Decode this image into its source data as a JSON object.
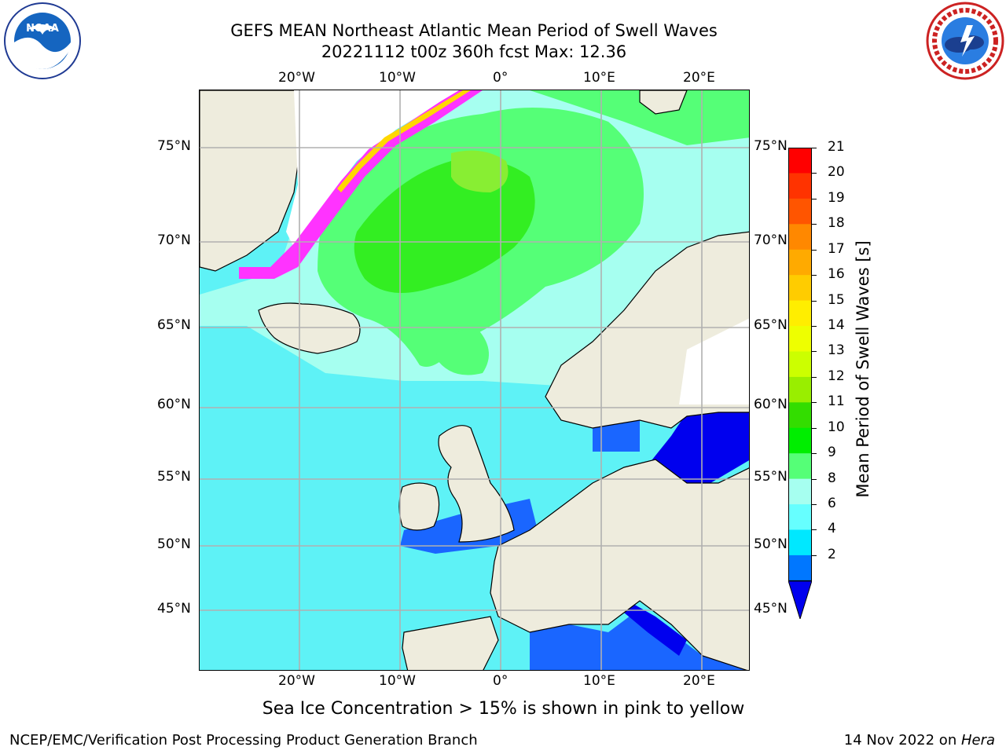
{
  "title": {
    "line1": "GEFS MEAN Northeast Atlantic Mean Period of Swell Waves",
    "line2": "20221112 t00z 360h fcst   Max: 12.36"
  },
  "map": {
    "region": "Northeast Atlantic",
    "variable": "Mean Period of Swell Waves",
    "units": "s",
    "longitude_labels": [
      "20°W",
      "10°W",
      "0°",
      "10°E",
      "20°E"
    ],
    "latitude_labels": [
      "75°N",
      "70°N",
      "65°N",
      "60°N",
      "55°N",
      "50°N",
      "45°N"
    ],
    "land_color": "#eeecdd",
    "coastline_color": "#000000",
    "gridline_color": "#b0b0b0",
    "sea_ice_colors": [
      "#ff33ff",
      "#ffd700",
      "#ffff66"
    ]
  },
  "colorbar": {
    "label": "Mean Period of Swell Waves [s]",
    "ticks": [
      "21",
      "20",
      "19",
      "18",
      "17",
      "16",
      "15",
      "14",
      "13",
      "12",
      "11",
      "10",
      "9",
      "8",
      "6",
      "4",
      "2"
    ],
    "colors": [
      "#ff0000",
      "#ff3300",
      "#ff5500",
      "#ff8800",
      "#ffaa00",
      "#ffcc00",
      "#ffee00",
      "#eeff00",
      "#ccff00",
      "#99ee00",
      "#33dd00",
      "#00ee00",
      "#55ff77",
      "#a6fff0",
      "#66ffff",
      "#00e8ff",
      "#0077ff",
      "#0000ee"
    ],
    "extend": "min"
  },
  "sea_ice_note": "Sea Ice Concentration > 15% is shown in pink to yellow",
  "footer": {
    "left": "NCEP/EMC/Verification Post Processing Product Generation Branch",
    "right_date": "14 Nov 2022 on ",
    "right_host": "Hera"
  },
  "logos": {
    "left": "noaa-logo",
    "right": "nws-logo",
    "left_emblem_text": "NOAA",
    "right_ring_text": "NATIONAL WEATHER SERVICE"
  }
}
